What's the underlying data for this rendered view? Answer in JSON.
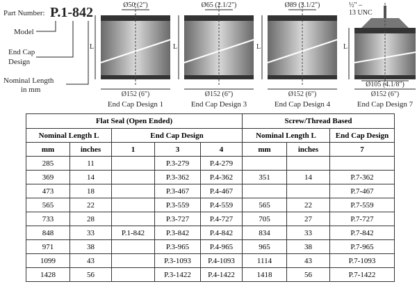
{
  "header": {
    "part_number_label": "Part Number:",
    "part_number": "P.1-842",
    "model": "Model",
    "end_cap_design": [
      "End Cap",
      "Design"
    ],
    "nominal_length": [
      "Nominal Length",
      "in mm"
    ]
  },
  "designs": [
    {
      "top_dim": "Ø50 (2\")",
      "length_label": "L",
      "bottom_dim": "Ø152 (6\")",
      "caption": "End Cap Design 1"
    },
    {
      "top_dim": "Ø65 (2.1/2\")",
      "length_label": "L",
      "bottom_dim": "Ø152 (6\")",
      "caption": "End Cap Design 3"
    },
    {
      "top_dim": "Ø89 (3.1/2\")",
      "length_label": "L",
      "bottom_dim": "Ø152 (6\")",
      "caption": "End Cap Design 4"
    },
    {
      "top_dim_lines": [
        "½\" –",
        "13 UNC"
      ],
      "length_label": "L",
      "inner_dim": "Ø105 (4.1/8\")",
      "bottom_dim": "Ø152 (6\")",
      "caption": "End Cap Design 7"
    }
  ],
  "table": {
    "group_headers": [
      "Flat Seal (Open Ended)",
      "Screw/Thread Based"
    ],
    "sub_headers": [
      "Nominal Length L",
      "End Cap Design",
      "Nominal Length L",
      "End Cap Design"
    ],
    "columns": [
      "mm",
      "inches",
      "1",
      "3",
      "4",
      "mm",
      "inches",
      "7"
    ],
    "rows": [
      [
        285,
        11,
        null,
        "P.3-279",
        "P.4-279",
        null,
        null,
        null
      ],
      [
        369,
        14,
        null,
        "P.3-362",
        "P.4-362",
        351,
        14,
        "P.7-362"
      ],
      [
        473,
        18,
        null,
        "P.3-467",
        "P.4-467",
        null,
        null,
        "P.7-467"
      ],
      [
        565,
        22,
        null,
        "P.3-559",
        "P.4-559",
        565,
        22,
        "P.7-559"
      ],
      [
        733,
        28,
        null,
        "P.3-727",
        "P.4-727",
        705,
        27,
        "P.7-727"
      ],
      [
        848,
        33,
        "P.1-842",
        "P.3-842",
        "P.4-842",
        834,
        33,
        "P.7-842"
      ],
      [
        971,
        38,
        null,
        "P.3-965",
        "P.4-965",
        965,
        38,
        "P.7-965"
      ],
      [
        1099,
        43,
        null,
        "P.3-1093",
        "P.4-1093",
        1114,
        43,
        "P.7-1093"
      ],
      [
        1428,
        56,
        null,
        "P.3-1422",
        "P.4-1422",
        1418,
        56,
        "P.7-1422"
      ]
    ]
  }
}
